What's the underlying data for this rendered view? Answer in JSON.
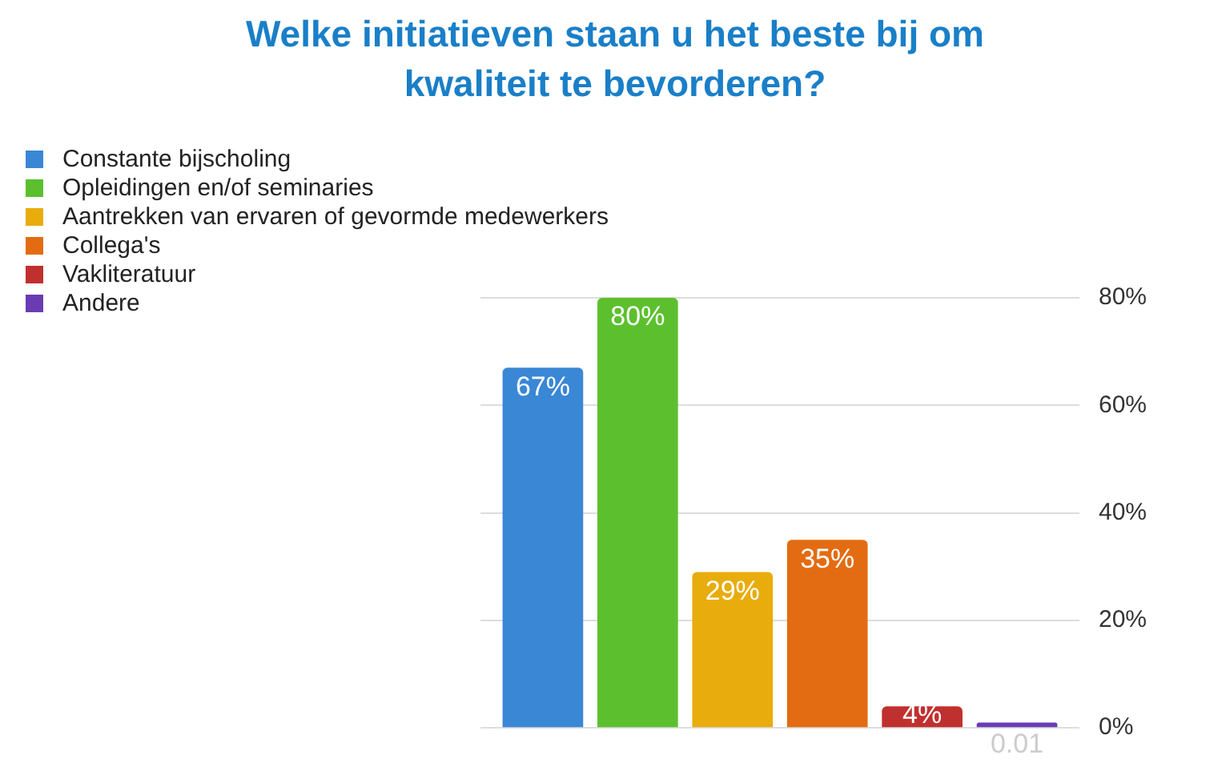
{
  "chart_data": {
    "type": "bar",
    "title": "Welke initiatieven staan u het beste bij om kwaliteit te bevorderen?",
    "categories": [
      null
    ],
    "series": [
      {
        "name": "Constante bijscholing",
        "color": "#3a87d6",
        "values": [
          67
        ],
        "value_labels": [
          "67%"
        ]
      },
      {
        "name": "Opleidingen en/of seminaries",
        "color": "#5cc02e",
        "values": [
          80
        ],
        "value_labels": [
          "80%"
        ]
      },
      {
        "name": "Aantrekken van ervaren of gevormde medewerkers",
        "color": "#e8ac0c",
        "values": [
          29
        ],
        "value_labels": [
          "29%"
        ]
      },
      {
        "name": "Collega's",
        "color": "#e36c12",
        "values": [
          35
        ],
        "value_labels": [
          "35%"
        ]
      },
      {
        "name": "Vakliteratuur",
        "color": "#c0302e",
        "values": [
          4
        ],
        "value_labels": [
          "4%"
        ]
      },
      {
        "name": "Andere",
        "color": "#6a3cb4",
        "values": [
          1
        ]
      }
    ],
    "ylim": [
      0,
      80
    ],
    "yticks": [
      {
        "value": 0,
        "label": "0%"
      },
      {
        "value": 20,
        "label": "20%"
      },
      {
        "value": 40,
        "label": "40%"
      },
      {
        "value": 60,
        "label": "60%"
      },
      {
        "value": 80,
        "label": "80%"
      }
    ],
    "grid": "y",
    "legend": "top left",
    "annotations": [
      "0.01"
    ]
  }
}
